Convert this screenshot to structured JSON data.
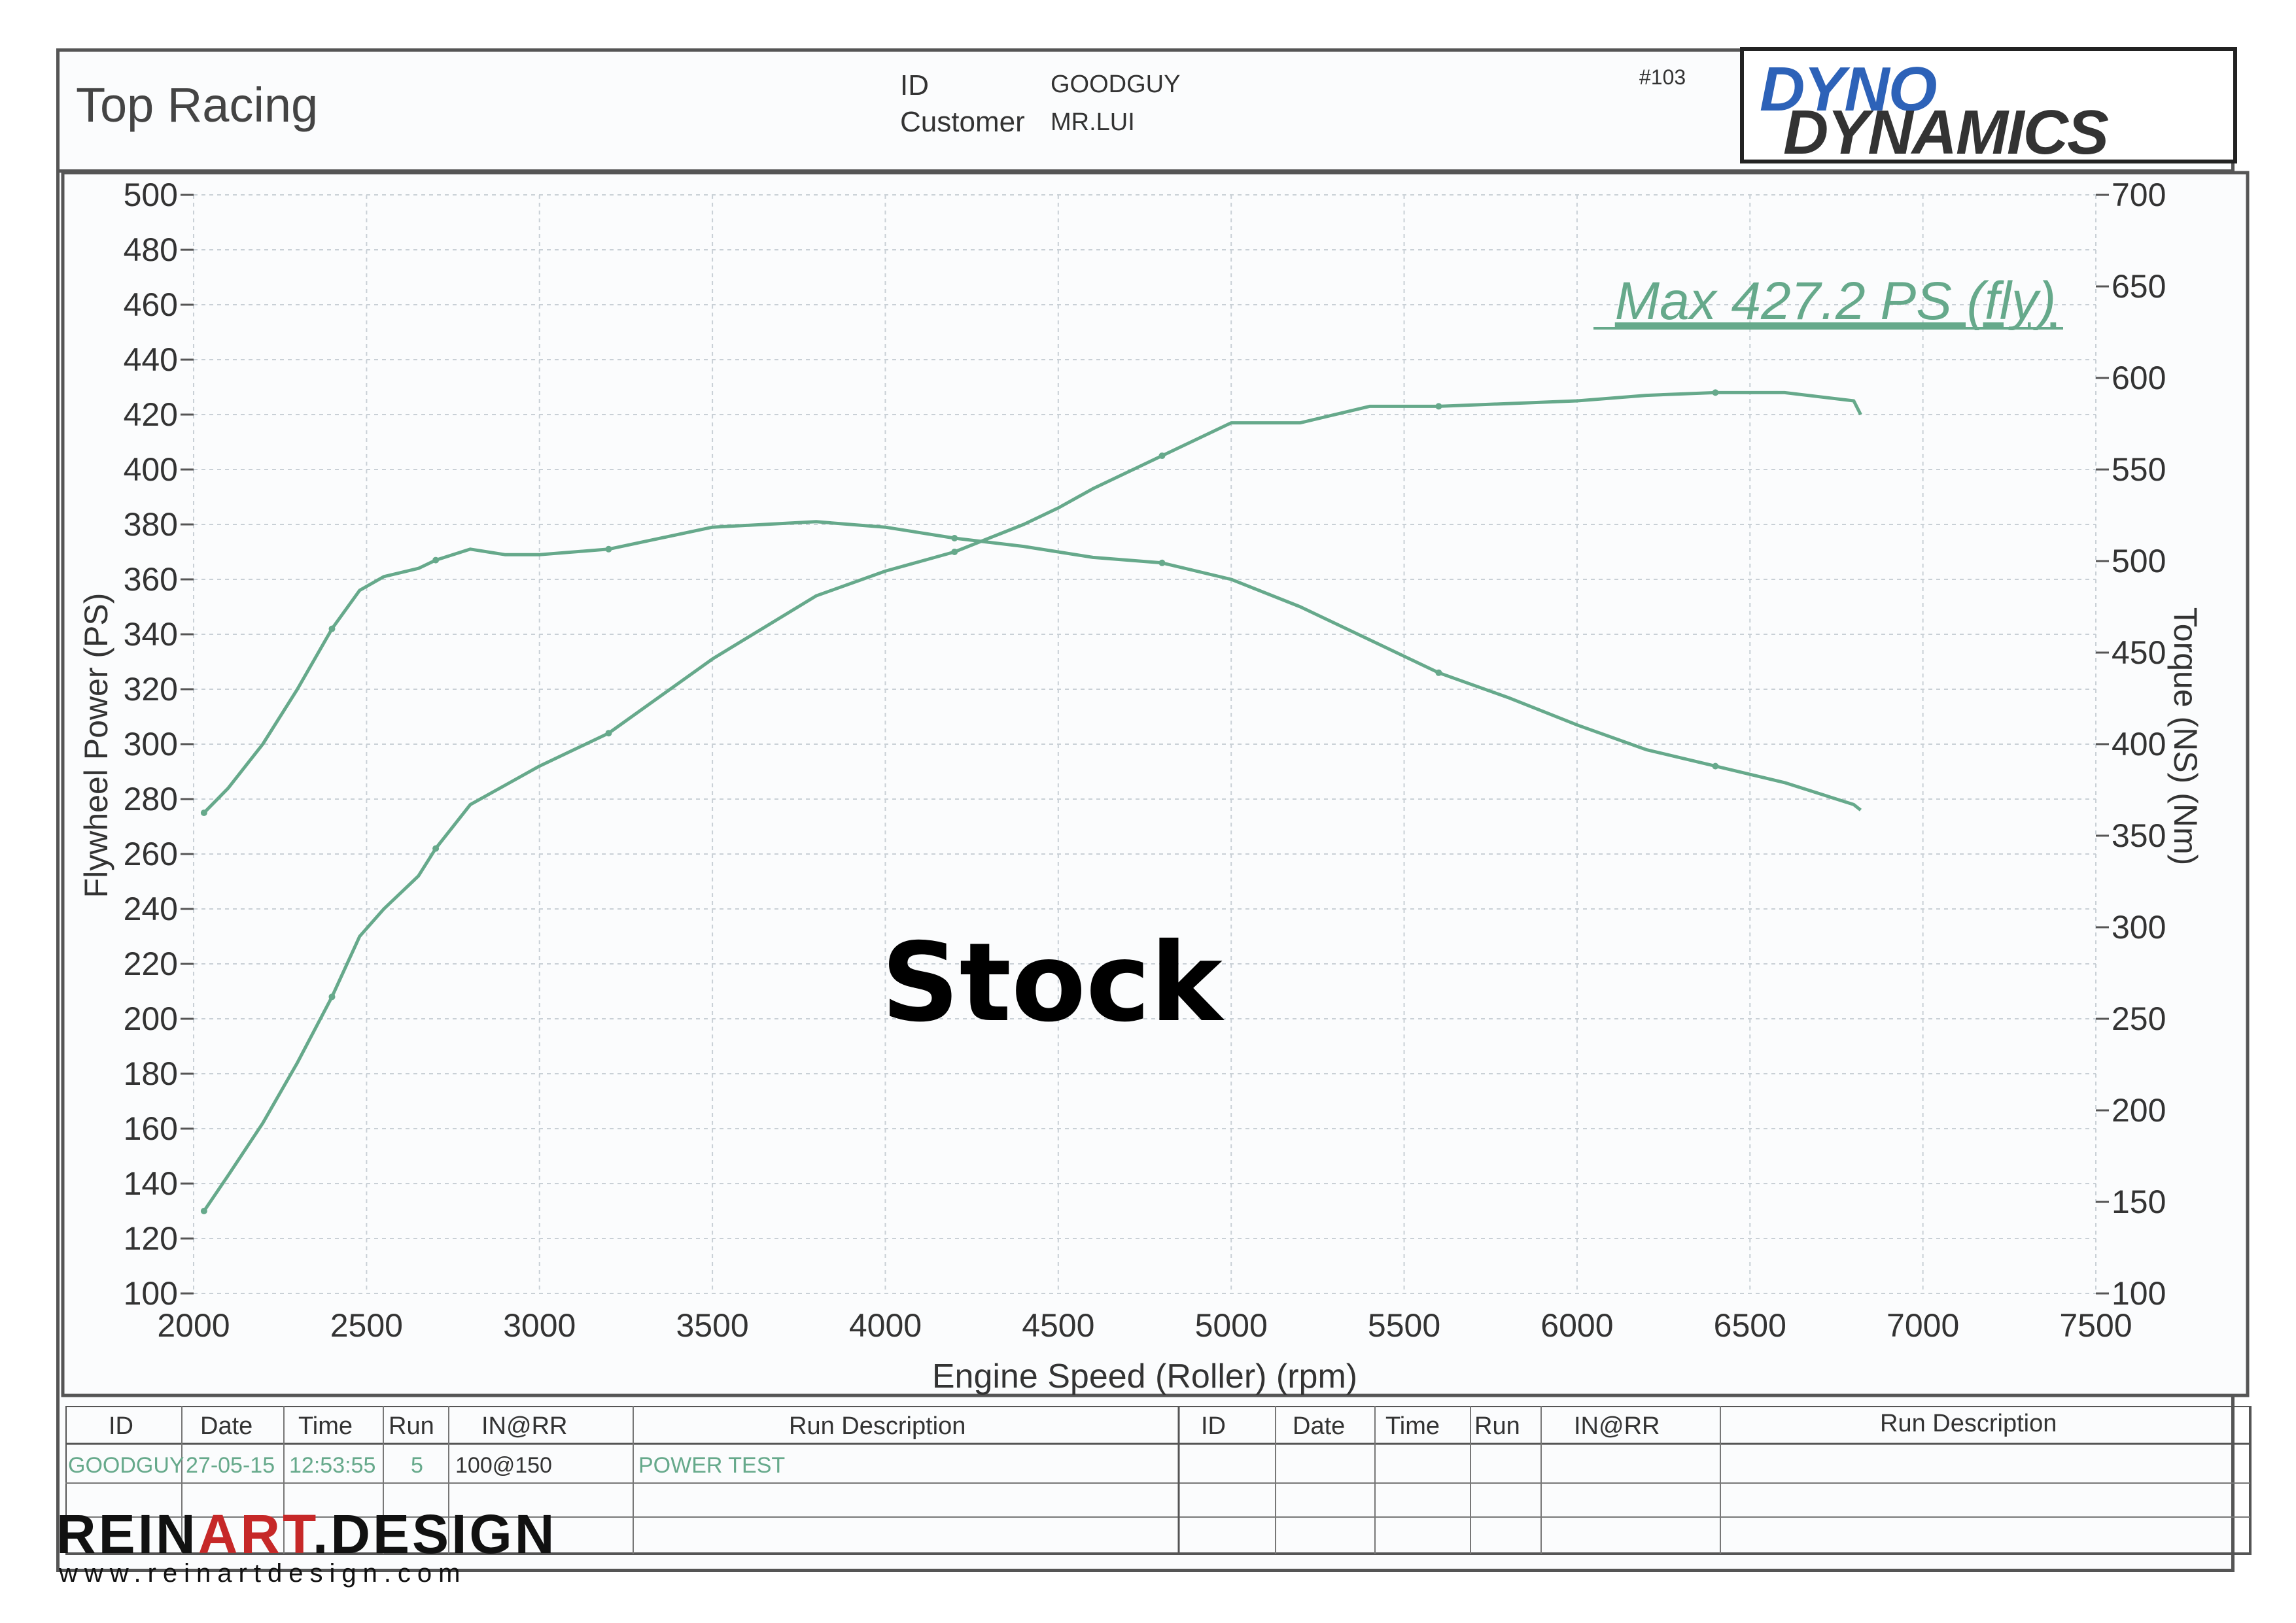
{
  "header": {
    "title": "Top Racing",
    "id_label": "ID",
    "id_value": "GOODGUY",
    "customer_label": "Customer",
    "customer_value": "MR.LUI",
    "run_number": "#103",
    "logo_line1": "DYNO",
    "logo_line2": "DYNAMICS"
  },
  "colors": {
    "curve": "#66a98b",
    "grid": "#c9d0d6",
    "text": "#333333"
  },
  "chart_data": {
    "type": "line",
    "xlabel": "Engine Speed (Roller) (rpm)",
    "ylabel": "Flywheel Power (PS)",
    "y2label": "Torque (NS) (Nm)",
    "xlim": [
      2000,
      7500
    ],
    "ylim": [
      100,
      500
    ],
    "y2lim": [
      100,
      700
    ],
    "xticks": [
      2000,
      2500,
      3000,
      3500,
      4000,
      4500,
      5000,
      5500,
      6000,
      6500,
      7000,
      7500
    ],
    "yticks": [
      100,
      120,
      140,
      160,
      180,
      200,
      220,
      240,
      260,
      280,
      300,
      320,
      340,
      360,
      380,
      400,
      420,
      440,
      460,
      480,
      500
    ],
    "y2ticks": [
      100,
      150,
      200,
      250,
      300,
      350,
      400,
      450,
      500,
      550,
      600,
      650,
      700
    ],
    "annotation": "Max 427.2 PS (fly)",
    "overlay_text": "Stock",
    "grid": true,
    "series": [
      {
        "axis": "left",
        "x": [
          2030,
          2100,
          2200,
          2300,
          2400,
          2480,
          2550,
          2650,
          2700,
          2800,
          2900,
          3000,
          3200,
          3500,
          3800,
          4000,
          4200,
          4400,
          4500,
          4600,
          4800,
          5000,
          5200,
          5400,
          5600,
          5800,
          6000,
          6200,
          6400,
          6600,
          6800,
          6820
        ],
        "y": [
          130,
          143,
          162,
          184,
          208,
          230,
          240,
          252,
          262,
          278,
          285,
          292,
          304,
          331,
          354,
          363,
          370,
          380,
          386,
          393,
          405,
          417,
          417,
          423,
          423,
          424,
          425,
          427,
          428,
          428,
          425,
          420
        ]
      },
      {
        "axis": "left",
        "x": [
          2030,
          2100,
          2200,
          2300,
          2400,
          2480,
          2550,
          2650,
          2700,
          2800,
          2900,
          3000,
          3200,
          3500,
          3800,
          4000,
          4200,
          4400,
          4500,
          4600,
          4800,
          5000,
          5200,
          5400,
          5600,
          5800,
          6000,
          6200,
          6400,
          6600,
          6800,
          6820
        ],
        "y": [
          275,
          284,
          300,
          320,
          342,
          356,
          361,
          364,
          367,
          371,
          369,
          369,
          371,
          379,
          381,
          379,
          375,
          372,
          370,
          368,
          366,
          360,
          350,
          338,
          326,
          317,
          307,
          298,
          292,
          286,
          278,
          276
        ]
      }
    ]
  },
  "table": {
    "headers": [
      "ID",
      "Date",
      "Time",
      "Run",
      "IN@RR",
      "Run Description",
      "ID",
      "Date",
      "Time",
      "Run",
      "IN@RR",
      "Run Description"
    ],
    "row1": [
      "GOODGUY",
      "27-05-15",
      "12:53:55",
      "5",
      "100@150",
      "POWER TEST"
    ]
  },
  "branding": {
    "pre": "REIN",
    "accent": "ART",
    "post": ".DESIGN",
    "url": "www.reinartdesign.com"
  }
}
